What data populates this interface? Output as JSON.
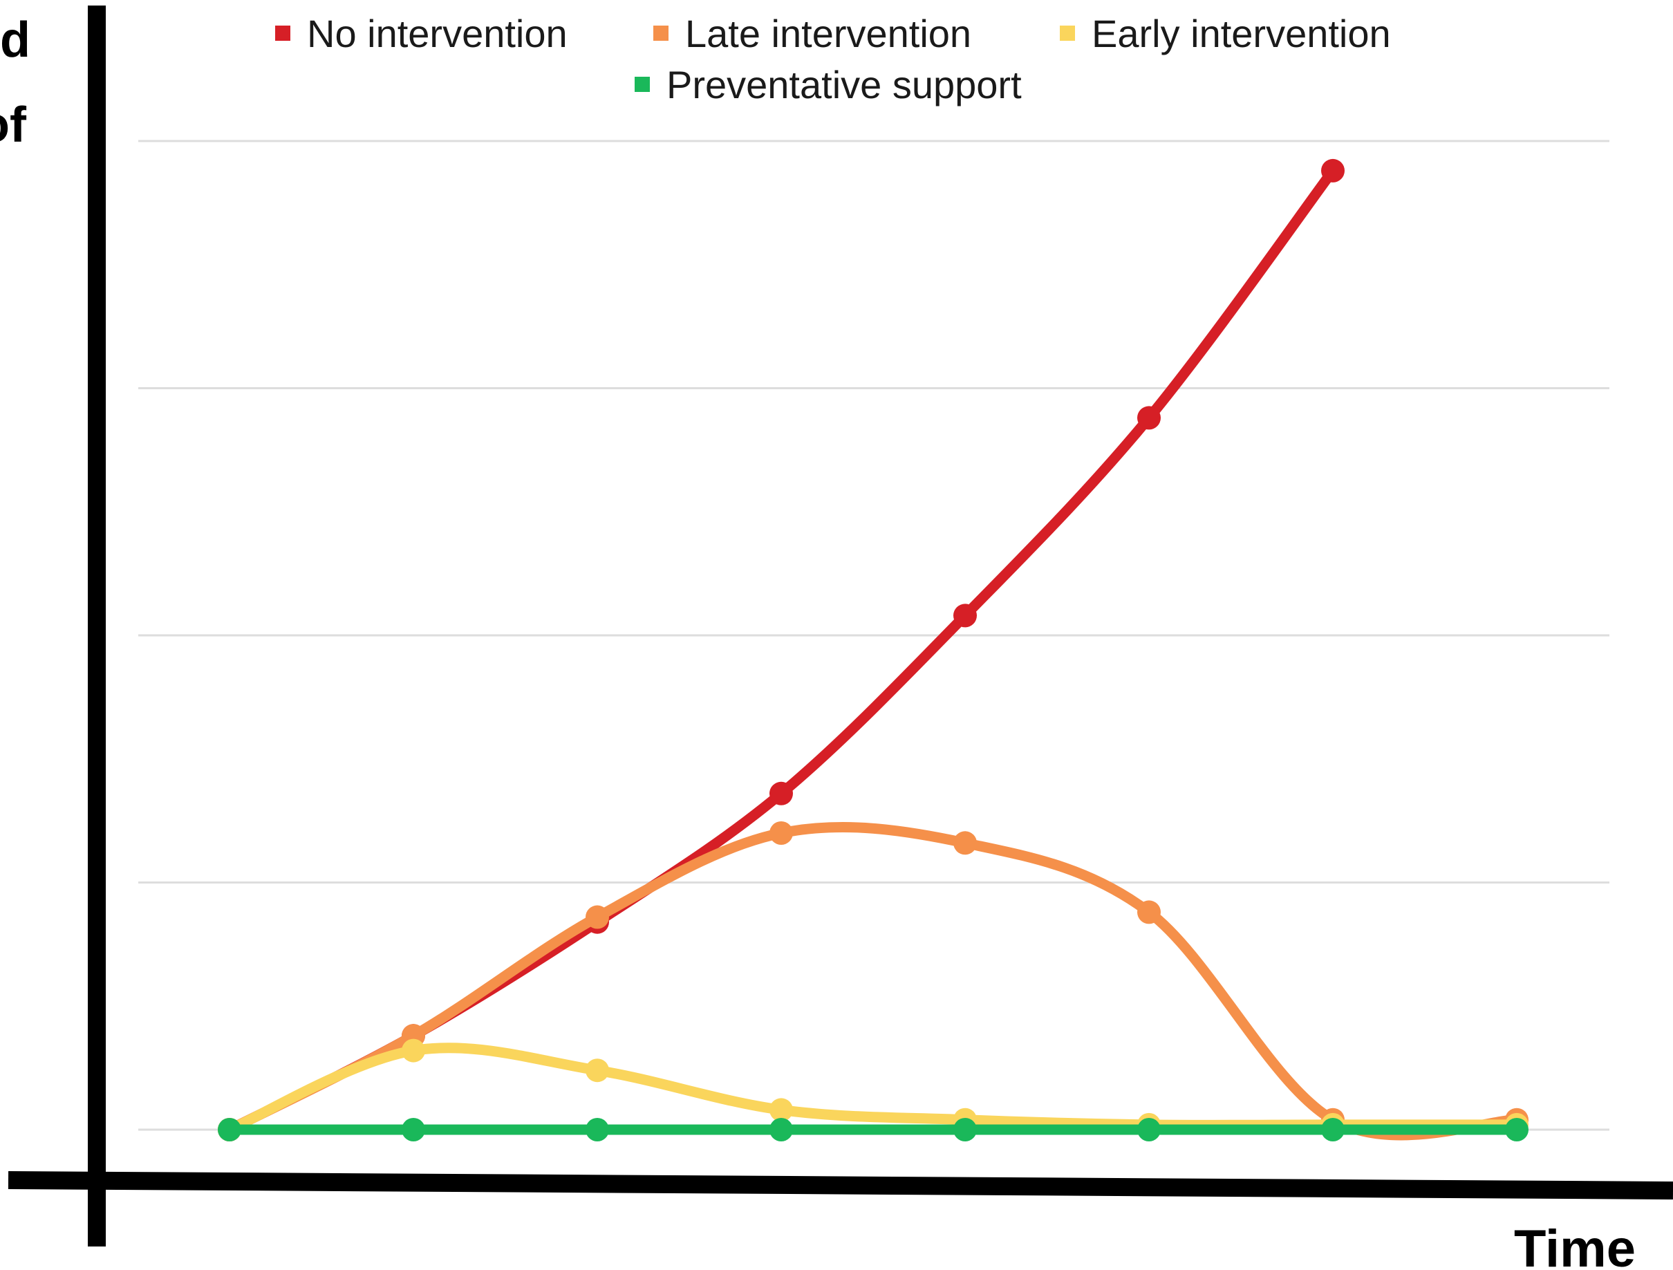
{
  "chart_data": {
    "type": "line",
    "title": "",
    "ylabel_fragments": [
      "d",
      "of"
    ],
    "xlabel": "Time",
    "x": [
      0,
      1,
      2,
      3,
      4,
      5,
      6,
      7
    ],
    "ylim": [
      0,
      100
    ],
    "gridlines": [
      0,
      25,
      50,
      75,
      100
    ],
    "grid": true,
    "legend_position": "top",
    "series": [
      {
        "name": "No intervention",
        "color": "#d61f26",
        "values": [
          0,
          9.5,
          21,
          34,
          52,
          72,
          97,
          null
        ]
      },
      {
        "name": "Late intervention",
        "color": "#f5904a",
        "values": [
          0,
          9.5,
          21.5,
          30,
          29,
          22,
          1,
          1
        ]
      },
      {
        "name": "Early intervention",
        "color": "#fad55c",
        "values": [
          0,
          8,
          6,
          2,
          1,
          0.5,
          0.5,
          0.5
        ]
      },
      {
        "name": "Preventative support",
        "color": "#1ab85a",
        "values": [
          0,
          0,
          0,
          0,
          0,
          0,
          0,
          0
        ]
      }
    ]
  }
}
